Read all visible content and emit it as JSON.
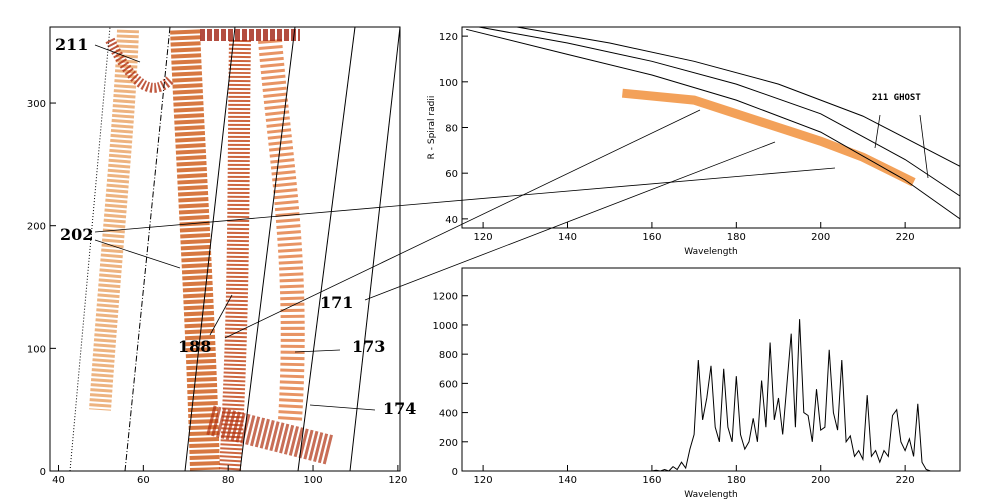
{
  "chart_data": [
    {
      "type": "heatmap",
      "xlim": [
        38,
        120.5
      ],
      "ylim": [
        0,
        362
      ],
      "xticks": [
        40,
        60,
        80,
        100,
        120
      ],
      "yticks": [
        0,
        100,
        200,
        300
      ],
      "annotations": [
        "211",
        "202",
        "188",
        "171",
        "173",
        "174"
      ]
    },
    {
      "type": "line",
      "xlabel": "Wavelength",
      "ylabel": "R - Spiral radii",
      "xlim": [
        115,
        233
      ],
      "ylim": [
        36,
        124
      ],
      "xticks": [
        120,
        140,
        160,
        180,
        200,
        220
      ],
      "yticks": [
        40,
        60,
        80,
        100,
        120
      ],
      "series": [
        {
          "color": "#f08a30",
          "width": 9,
          "x": [
            153,
            170,
            180,
            190,
            200,
            210,
            222
          ],
          "values": [
            95,
            92,
            86,
            80,
            74,
            67,
            56
          ]
        },
        {
          "color": "#000000",
          "width": 1,
          "x": [
            128,
            150,
            170,
            190,
            210,
            233
          ],
          "values": [
            124,
            117,
            109,
            99,
            85,
            63
          ]
        },
        {
          "color": "#000000",
          "width": 1,
          "x": [
            119,
            140,
            160,
            180,
            200,
            220,
            233
          ],
          "values": [
            124,
            117,
            109,
            99,
            86,
            66,
            50
          ]
        },
        {
          "color": "#000000",
          "width": 1,
          "x": [
            116,
            140,
            160,
            180,
            200,
            220,
            233
          ],
          "values": [
            123,
            112,
            103,
            92,
            78,
            57,
            40
          ]
        }
      ],
      "annotations": [
        "211 GHOST"
      ]
    },
    {
      "type": "line",
      "xlabel": "Wavelength",
      "xlim": [
        115,
        233
      ],
      "ylim": [
        0,
        1390
      ],
      "xticks": [
        120,
        140,
        160,
        180,
        200,
        220
      ],
      "yticks": [
        0,
        200,
        400,
        600,
        800,
        1000,
        1200
      ],
      "series": [
        {
          "color": "#000000",
          "width": 1,
          "x": [
            115,
            155,
            160,
            161,
            162,
            163,
            164,
            165,
            166,
            167,
            168,
            169,
            170,
            171,
            172,
            173,
            174,
            175,
            176,
            177,
            178,
            179,
            180,
            181,
            182,
            183,
            184,
            185,
            186,
            187,
            188,
            189,
            190,
            191,
            192,
            193,
            194,
            195,
            196,
            197,
            198,
            199,
            200,
            201,
            202,
            203,
            204,
            205,
            206,
            207,
            208,
            209,
            210,
            211,
            212,
            213,
            214,
            215,
            216,
            217,
            218,
            219,
            220,
            221,
            222,
            223,
            224,
            225,
            226,
            232
          ],
          "values": [
            0,
            0,
            0,
            5,
            0,
            10,
            0,
            30,
            10,
            60,
            20,
            150,
            250,
            760,
            350,
            500,
            720,
            300,
            200,
            700,
            300,
            200,
            650,
            250,
            150,
            200,
            360,
            200,
            620,
            300,
            880,
            350,
            500,
            250,
            600,
            940,
            300,
            1040,
            400,
            380,
            200,
            560,
            280,
            300,
            830,
            400,
            280,
            760,
            200,
            240,
            100,
            140,
            80,
            520,
            100,
            140,
            60,
            140,
            100,
            380,
            420,
            200,
            140,
            220,
            100,
            460,
            60,
            10,
            0,
            0
          ]
        }
      ]
    }
  ]
}
